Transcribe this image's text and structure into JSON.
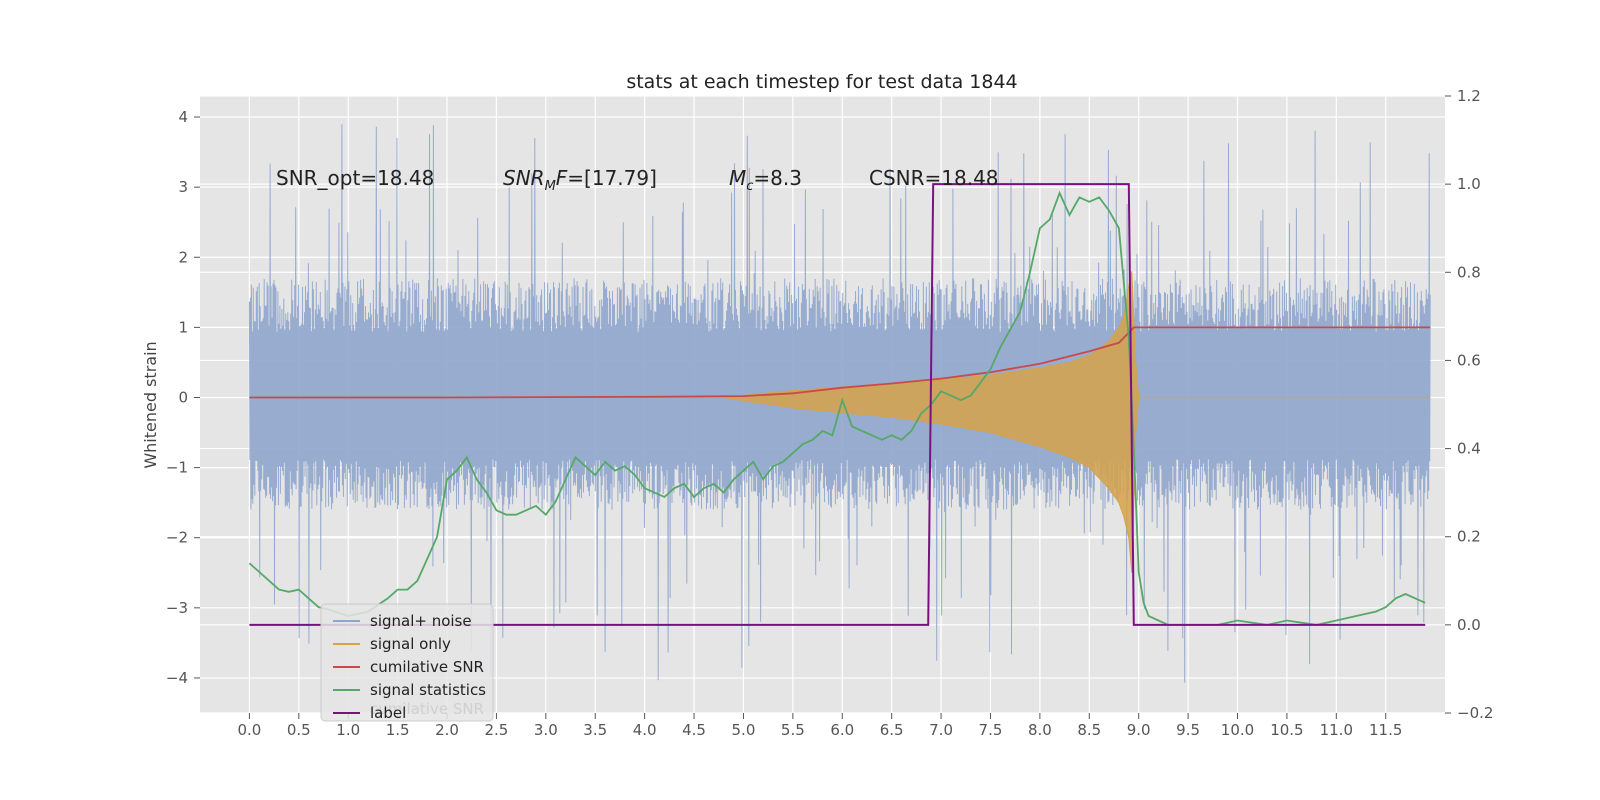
{
  "chart_data": {
    "type": "line",
    "title": "stats at each timestep for test data 1844",
    "ylabel": "Whitened strain",
    "xlim": [
      -0.5,
      12.1
    ],
    "ylim": [
      -4.5,
      4.3
    ],
    "y2lim": [
      -0.2,
      1.2
    ],
    "grid": true,
    "xticks": [
      "0.0",
      "0.5",
      "1.0",
      "1.5",
      "2.0",
      "2.5",
      "3.0",
      "3.5",
      "4.0",
      "4.5",
      "5.0",
      "5.5",
      "6.0",
      "6.5",
      "7.0",
      "7.5",
      "8.0",
      "8.5",
      "9.0",
      "9.5",
      "10.0",
      "10.5",
      "11.0",
      "11.5"
    ],
    "yticks": [
      "4",
      "3",
      "2",
      "1",
      "0",
      "−1",
      "−2",
      "−3",
      "−4"
    ],
    "y2ticks": [
      "1.2",
      "1.0",
      "0.8",
      "0.6",
      "0.4",
      "0.2",
      "0.0",
      "−0.2"
    ],
    "annotations": [
      "SNR_opt=18.48",
      "=[17.79]",
      "=8.3",
      "CSNR=18.48"
    ],
    "annotation_math": {
      "snr": "SNR",
      "snr_sub": "M",
      "f": "F",
      "m": "M",
      "m_sub": "c"
    },
    "legend_ghost_text": "cumilative SNR",
    "legend_position": "lower-left",
    "colors": {
      "noise": "#8fa5cc",
      "signal": "#d6a24a",
      "cum_snr": "#c94a4a",
      "stats": "#55a868",
      "label": "#7b1082",
      "plot_bg": "#e5e5e5",
      "grid": "#ffffff"
    },
    "series": [
      {
        "name": "signal+ noise",
        "axis": "left",
        "x_range": [
          0.0,
          11.95
        ],
        "envelope": {
          "typical_max": 1.7,
          "typical_min": -1.6,
          "peak_max": 3.9,
          "peak_min": -4.1
        }
      },
      {
        "name": "signal only",
        "axis": "left",
        "x": [
          0.0,
          4.8,
          5.5,
          6.0,
          6.5,
          7.0,
          7.5,
          8.0,
          8.3,
          8.5,
          8.7,
          8.8,
          8.85,
          8.9,
          8.93,
          8.97,
          9.0,
          11.95
        ],
        "upper": [
          0,
          0,
          0.1,
          0.15,
          0.2,
          0.25,
          0.32,
          0.42,
          0.5,
          0.6,
          0.8,
          1.0,
          1.15,
          1.6,
          1.8,
          0.5,
          0,
          0
        ],
        "lower": [
          0,
          0,
          -0.15,
          -0.22,
          -0.28,
          -0.38,
          -0.5,
          -0.7,
          -0.85,
          -1.0,
          -1.3,
          -1.5,
          -1.7,
          -2.0,
          -2.5,
          -0.5,
          0,
          0
        ]
      },
      {
        "name": "cumilative SNR",
        "axis": "left",
        "x": [
          0.0,
          2.0,
          4.0,
          5.0,
          5.5,
          6.0,
          6.5,
          7.0,
          7.5,
          8.0,
          8.5,
          8.8,
          8.93,
          8.95,
          11.95
        ],
        "y": [
          0.0,
          0.0,
          0.01,
          0.02,
          0.06,
          0.14,
          0.2,
          0.27,
          0.36,
          0.48,
          0.66,
          0.78,
          0.97,
          1.0,
          1.0
        ]
      },
      {
        "name": "signal statistics",
        "axis": "right",
        "x": [
          0.0,
          0.1,
          0.2,
          0.3,
          0.4,
          0.5,
          0.6,
          0.7,
          0.8,
          1.0,
          1.2,
          1.4,
          1.5,
          1.6,
          1.7,
          1.8,
          1.9,
          2.0,
          2.1,
          2.2,
          2.3,
          2.4,
          2.5,
          2.6,
          2.7,
          2.8,
          2.9,
          3.0,
          3.1,
          3.2,
          3.3,
          3.4,
          3.5,
          3.6,
          3.7,
          3.8,
          3.9,
          4.0,
          4.1,
          4.2,
          4.3,
          4.4,
          4.5,
          4.6,
          4.7,
          4.8,
          4.9,
          5.0,
          5.1,
          5.2,
          5.3,
          5.4,
          5.5,
          5.6,
          5.7,
          5.8,
          5.9,
          6.0,
          6.1,
          6.2,
          6.3,
          6.4,
          6.5,
          6.6,
          6.7,
          6.8,
          6.9,
          7.0,
          7.1,
          7.2,
          7.3,
          7.4,
          7.5,
          7.6,
          7.7,
          7.8,
          7.9,
          8.0,
          8.1,
          8.2,
          8.3,
          8.4,
          8.5,
          8.6,
          8.7,
          8.8,
          8.9,
          8.95,
          9.0,
          9.05,
          9.1,
          9.2,
          9.3,
          9.5,
          9.8,
          10.0,
          10.3,
          10.5,
          10.8,
          11.0,
          11.2,
          11.4,
          11.5,
          11.6,
          11.7,
          11.8,
          11.9
        ],
        "y": [
          0.14,
          0.12,
          0.1,
          0.08,
          0.075,
          0.08,
          0.06,
          0.04,
          0.035,
          0.02,
          0.03,
          0.06,
          0.08,
          0.08,
          0.1,
          0.15,
          0.2,
          0.33,
          0.35,
          0.38,
          0.33,
          0.3,
          0.26,
          0.25,
          0.25,
          0.26,
          0.27,
          0.25,
          0.28,
          0.33,
          0.38,
          0.36,
          0.34,
          0.37,
          0.35,
          0.36,
          0.34,
          0.31,
          0.3,
          0.29,
          0.31,
          0.32,
          0.29,
          0.31,
          0.32,
          0.3,
          0.33,
          0.35,
          0.37,
          0.33,
          0.36,
          0.37,
          0.39,
          0.41,
          0.42,
          0.44,
          0.43,
          0.51,
          0.45,
          0.44,
          0.43,
          0.42,
          0.43,
          0.42,
          0.44,
          0.48,
          0.5,
          0.53,
          0.52,
          0.51,
          0.52,
          0.55,
          0.58,
          0.63,
          0.67,
          0.71,
          0.8,
          0.9,
          0.92,
          0.98,
          0.93,
          0.97,
          0.96,
          0.97,
          0.94,
          0.9,
          0.65,
          0.4,
          0.12,
          0.05,
          0.02,
          0.01,
          0.0,
          0.0,
          0.0,
          0.01,
          0.0,
          0.01,
          0.0,
          0.01,
          0.02,
          0.03,
          0.04,
          0.06,
          0.07,
          0.06,
          0.05
        ]
      },
      {
        "name": "label",
        "axis": "right",
        "x": [
          0.0,
          6.87,
          6.92,
          8.9,
          8.95,
          11.9
        ],
        "y": [
          0.0,
          0.0,
          1.0,
          1.0,
          0.0,
          0.0
        ]
      }
    ]
  }
}
